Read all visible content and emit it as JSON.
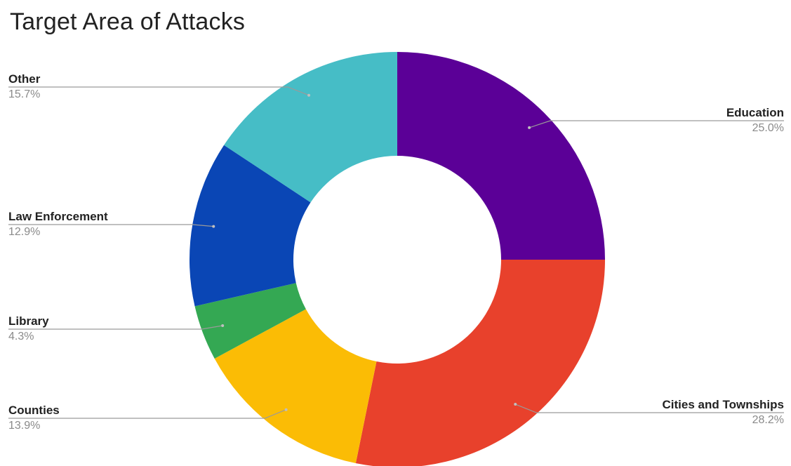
{
  "chart_data": {
    "type": "pie",
    "subtype": "donut",
    "title": "Target Area of Attacks",
    "legend": "none",
    "slices": [
      {
        "label": "Education",
        "value": 25.0,
        "pct_text": "25.0%",
        "color": "#5b0097",
        "side": "right"
      },
      {
        "label": "Cities and Townships",
        "value": 28.2,
        "pct_text": "28.2%",
        "color": "#e8412c",
        "side": "right"
      },
      {
        "label": "Counties",
        "value": 13.9,
        "pct_text": "13.9%",
        "color": "#fbbc05",
        "side": "left"
      },
      {
        "label": "Library",
        "value": 4.3,
        "pct_text": "4.3%",
        "color": "#34a853",
        "side": "left"
      },
      {
        "label": "Law Enforcement",
        "value": 12.9,
        "pct_text": "12.9%",
        "color": "#0a46b5",
        "side": "left"
      },
      {
        "label": "Other",
        "value": 15.7,
        "pct_text": "15.7%",
        "color": "#46bdc6",
        "side": "left"
      }
    ]
  }
}
